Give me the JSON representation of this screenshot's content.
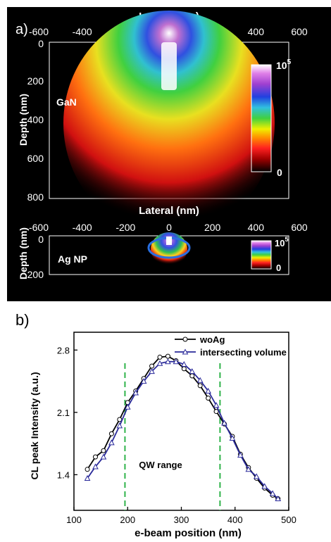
{
  "panel_a": {
    "label": "a)",
    "top_map": {
      "axis_title": "Lateral (nm)",
      "y_axis_title": "Depth (nm)",
      "x_ticks": [
        "-600",
        "-400",
        "-200",
        "0",
        "200",
        "400",
        "600"
      ],
      "y_ticks": [
        "0",
        "200",
        "400",
        "600",
        "800"
      ],
      "material": "GaN",
      "scale_max": "10",
      "scale_exp": "5",
      "scale_min": "0"
    },
    "bottom_map": {
      "axis_title": "Lateral (nm)",
      "y_axis_title": "Depth (nm)",
      "x_ticks": [
        "-600",
        "-400",
        "-200",
        "0",
        "200",
        "400",
        "600"
      ],
      "y_ticks": [
        "0",
        "200"
      ],
      "material": "Ag NP",
      "scale_max": "10",
      "scale_exp": "5",
      "scale_min": "0"
    }
  },
  "chart_data": {
    "label": "b)",
    "type": "line",
    "xlabel": "e-beam position (nm)",
    "ylabel": "CL peak Intensity (a.u.)",
    "xlim": [
      100,
      500
    ],
    "ylim": [
      1.0,
      3.0
    ],
    "x_ticks": [
      "100",
      "200",
      "300",
      "400",
      "500"
    ],
    "y_ticks": [
      "1.4",
      "2.1",
      "2.8"
    ],
    "legend_position": "top-right",
    "annotation": "QW range",
    "qw_lines": [
      195,
      372
    ],
    "series": [
      {
        "name": "woAg",
        "color": "#000000",
        "marker": "circle",
        "x": [
          125,
          140,
          155,
          170,
          185,
          200,
          215,
          230,
          245,
          260,
          275,
          290,
          305,
          320,
          335,
          350,
          365,
          380,
          395,
          410,
          425,
          440,
          455,
          470,
          480
        ],
        "y": [
          1.46,
          1.6,
          1.67,
          1.86,
          2.02,
          2.21,
          2.34,
          2.48,
          2.62,
          2.72,
          2.73,
          2.68,
          2.59,
          2.51,
          2.4,
          2.26,
          2.11,
          1.97,
          1.83,
          1.63,
          1.48,
          1.36,
          1.25,
          1.17,
          1.13
        ]
      },
      {
        "name": "intersecting volume",
        "color": "#2a2a9a",
        "marker": "triangle",
        "x": [
          125,
          140,
          155,
          170,
          185,
          200,
          215,
          230,
          245,
          260,
          275,
          290,
          305,
          320,
          335,
          350,
          365,
          380,
          395,
          410,
          425,
          440,
          455,
          470,
          480
        ],
        "y": [
          1.36,
          1.49,
          1.6,
          1.76,
          1.95,
          2.16,
          2.32,
          2.45,
          2.56,
          2.65,
          2.67,
          2.67,
          2.64,
          2.56,
          2.46,
          2.34,
          2.18,
          1.98,
          1.81,
          1.62,
          1.46,
          1.38,
          1.27,
          1.19,
          1.13
        ]
      }
    ]
  }
}
